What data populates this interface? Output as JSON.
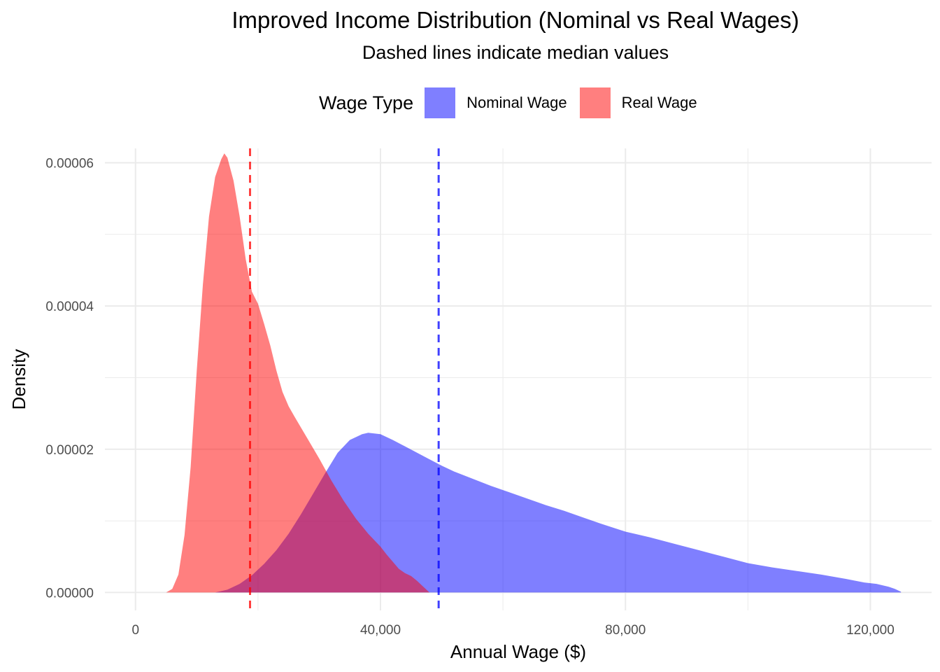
{
  "colors": {
    "nominal": "#0000ff",
    "real": "#ff0000",
    "grid": "#ebebeb"
  },
  "chart_data": {
    "type": "area",
    "title": "Improved Income Distribution (Nominal vs Real Wages)",
    "subtitle": "Dashed lines indicate median values",
    "xlabel": "Annual Wage ($)",
    "ylabel": "Density",
    "xlim": [
      -5000,
      130000
    ],
    "ylim": [
      -2.5e-06,
      6.2e-05
    ],
    "x_ticks": [
      {
        "value": 0,
        "label": "0"
      },
      {
        "value": 40000,
        "label": "40,000"
      },
      {
        "value": 80000,
        "label": "80,000"
      },
      {
        "value": 120000,
        "label": "120,000"
      }
    ],
    "y_ticks": [
      {
        "value": 0,
        "label": "0.00000"
      },
      {
        "value": 2e-05,
        "label": "0.00002"
      },
      {
        "value": 4e-05,
        "label": "0.00004"
      },
      {
        "value": 6e-05,
        "label": "0.00006"
      }
    ],
    "grid": true,
    "legend": {
      "title": "Wage Type",
      "position": "top"
    },
    "series": [
      {
        "name": "Nominal Wage",
        "color": "#0000ff",
        "opacity": 0.5,
        "median": 49500,
        "x": [
          13000,
          15000,
          17000,
          19000,
          21000,
          23000,
          25000,
          27000,
          29000,
          31000,
          33000,
          35000,
          37000,
          38000,
          40000,
          42000,
          44000,
          46000,
          48000,
          50000,
          52000,
          55000,
          58000,
          61000,
          64000,
          67000,
          70000,
          73000,
          76000,
          80000,
          84000,
          88000,
          92000,
          96000,
          100000,
          104000,
          108000,
          112000,
          116000,
          119000,
          121000,
          123000,
          124000,
          125000
        ],
        "y": [
          0,
          4e-07,
          1.2e-06,
          2.4e-06,
          4e-06,
          5.9e-06,
          8.2e-06,
          1.09e-05,
          1.38e-05,
          1.67e-05,
          1.95e-05,
          2.13e-05,
          2.21e-05,
          2.23e-05,
          2.21e-05,
          2.13e-05,
          2.04e-05,
          1.95e-05,
          1.86e-05,
          1.77e-05,
          1.69e-05,
          1.59e-05,
          1.49e-05,
          1.4e-05,
          1.31e-05,
          1.22e-05,
          1.14e-05,
          1.05e-05,
          9.6e-06,
          8.5e-06,
          7.7e-06,
          6.8e-06,
          5.9e-06,
          5e-06,
          4.1e-06,
          3.5e-06,
          3e-06,
          2.5e-06,
          1.9e-06,
          1.4e-06,
          1.2e-06,
          8e-07,
          5e-07,
          1e-07
        ]
      },
      {
        "name": "Real Wage",
        "color": "#ff0000",
        "opacity": 0.5,
        "median": 18700,
        "x": [
          5000,
          6000,
          7000,
          8000,
          9000,
          10000,
          11000,
          12000,
          13000,
          14000,
          14500,
          15000,
          16000,
          17000,
          18000,
          19000,
          20000,
          21000,
          22000,
          23000,
          24000,
          25000,
          26000,
          28000,
          30000,
          32000,
          34000,
          36000,
          38000,
          40000,
          41000,
          42000,
          43000,
          44000,
          45000,
          46000,
          47000,
          48000
        ],
        "y": [
          0,
          5e-07,
          2.5e-06,
          8e-06,
          1.75e-05,
          3.1e-05,
          4.3e-05,
          5.25e-05,
          5.8e-05,
          6.05e-05,
          6.13e-05,
          6.07e-05,
          5.75e-05,
          5.25e-05,
          4.65e-05,
          4.2e-05,
          4.03e-05,
          3.75e-05,
          3.45e-05,
          3.1e-05,
          2.8e-05,
          2.6e-05,
          2.45e-05,
          2.16e-05,
          1.87e-05,
          1.56e-05,
          1.28e-05,
          1.03e-05,
          8.2e-06,
          6.4e-06,
          5.3e-06,
          4.3e-06,
          3.3e-06,
          2.7e-06,
          2.3e-06,
          1.6e-06,
          8e-07,
          0
        ]
      }
    ]
  }
}
